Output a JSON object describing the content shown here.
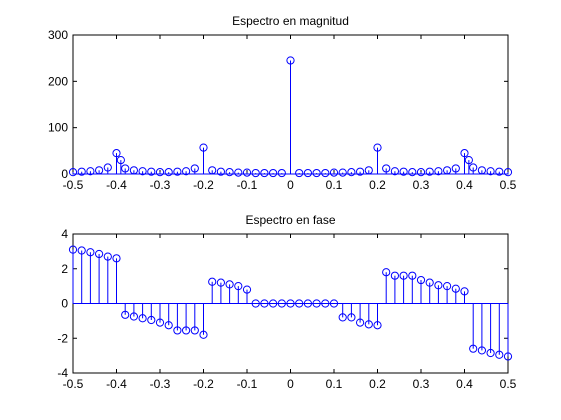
{
  "chart_data": [
    {
      "type": "stem",
      "title": "Espectro en magnitud",
      "xlabel": "",
      "ylabel": "",
      "xlim": [
        -0.5,
        0.5
      ],
      "ylim": [
        0,
        300
      ],
      "xticks": [
        -0.5,
        -0.4,
        -0.3,
        -0.2,
        -0.1,
        0,
        0.1,
        0.2,
        0.3,
        0.4,
        0.5
      ],
      "xtick_labels": [
        "-0.5",
        "-0.4",
        "-0.3",
        "-0.2",
        "-0.1",
        "0",
        "0.1",
        "0.2",
        "0.3",
        "0.4",
        "0.5"
      ],
      "yticks": [
        0,
        100,
        200,
        300
      ],
      "ytick_labels": [
        "0",
        "100",
        "200",
        "300"
      ],
      "grid": false,
      "color": "#0000ff",
      "x": [
        -0.5,
        -0.48,
        -0.46,
        -0.44,
        -0.42,
        -0.4,
        -0.38,
        -0.36,
        -0.34,
        -0.32,
        -0.3,
        -0.28,
        -0.26,
        -0.24,
        -0.22,
        -0.2,
        -0.18,
        -0.16,
        -0.14,
        -0.12,
        -0.1,
        -0.08,
        -0.06,
        -0.04,
        -0.02,
        0,
        0.02,
        0.04,
        0.06,
        0.08,
        0.1,
        0.12,
        0.14,
        0.16,
        0.18,
        0.2,
        0.22,
        0.24,
        0.26,
        0.28,
        0.3,
        0.32,
        0.34,
        0.36,
        0.38,
        0.4,
        0.42,
        0.44,
        0.46,
        0.48,
        0.5
      ],
      "y": [
        4,
        5,
        6,
        8,
        14,
        45,
        12,
        8,
        6,
        5,
        4,
        4,
        5,
        6,
        12,
        57,
        8,
        5,
        4,
        3,
        3,
        2,
        2,
        2,
        2,
        245,
        2,
        2,
        2,
        2,
        3,
        3,
        4,
        5,
        8,
        57,
        12,
        6,
        5,
        4,
        4,
        5,
        6,
        8,
        12,
        45,
        14,
        8,
        6,
        5,
        4
      ],
      "extra_points": [
        {
          "x": -0.39,
          "y": 30
        },
        {
          "x": 0.41,
          "y": 30
        }
      ]
    },
    {
      "type": "stem",
      "title": "Espectro en fase",
      "xlabel": "",
      "ylabel": "",
      "xlim": [
        -0.5,
        0.5
      ],
      "ylim": [
        -4,
        4
      ],
      "xticks": [
        -0.5,
        -0.4,
        -0.3,
        -0.2,
        -0.1,
        0,
        0.1,
        0.2,
        0.3,
        0.4,
        0.5
      ],
      "xtick_labels": [
        "-0.5",
        "-0.4",
        "-0.3",
        "-0.2",
        "-0.1",
        "0",
        "0.1",
        "0.2",
        "0.3",
        "0.4",
        "0.5"
      ],
      "yticks": [
        -4,
        -2,
        0,
        2,
        4
      ],
      "ytick_labels": [
        "-4",
        "-2",
        "0",
        "2",
        "4"
      ],
      "grid": false,
      "color": "#0000ff",
      "x": [
        -0.5,
        -0.48,
        -0.46,
        -0.44,
        -0.42,
        -0.4,
        -0.38,
        -0.36,
        -0.34,
        -0.32,
        -0.3,
        -0.28,
        -0.26,
        -0.24,
        -0.22,
        -0.2,
        -0.18,
        -0.16,
        -0.14,
        -0.12,
        -0.1,
        -0.08,
        -0.06,
        -0.04,
        -0.02,
        0,
        0.02,
        0.04,
        0.06,
        0.08,
        0.1,
        0.12,
        0.14,
        0.16,
        0.18,
        0.2,
        0.22,
        0.24,
        0.26,
        0.28,
        0.3,
        0.32,
        0.34,
        0.36,
        0.38,
        0.4,
        0.42,
        0.44,
        0.46,
        0.48,
        0.5
      ],
      "y": [
        3.1,
        3.05,
        2.95,
        2.85,
        2.7,
        2.6,
        -0.65,
        -0.75,
        -0.85,
        -0.95,
        -1.1,
        -1.25,
        -1.55,
        -1.55,
        -1.55,
        -1.8,
        1.25,
        1.2,
        1.1,
        1.0,
        0.8,
        0.0,
        0.0,
        0.0,
        0.0,
        0.0,
        0.0,
        0.0,
        0.0,
        0.0,
        0.0,
        -0.8,
        -0.8,
        -1.1,
        -1.2,
        -1.25,
        1.8,
        1.6,
        1.6,
        1.6,
        1.35,
        1.2,
        1.05,
        1.0,
        0.85,
        0.7,
        -2.6,
        -2.7,
        -2.85,
        -2.95,
        -3.05
      ]
    }
  ]
}
